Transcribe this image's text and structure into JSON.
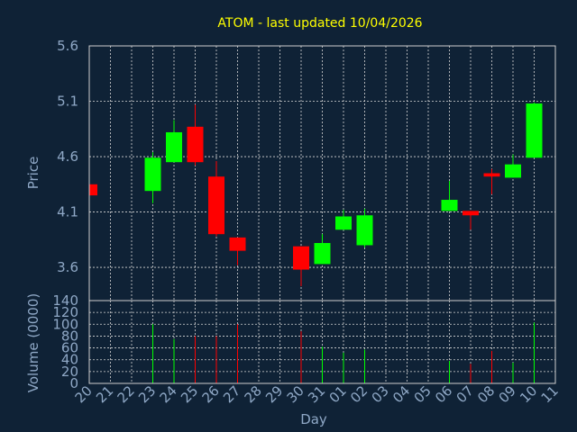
{
  "chart_data": [
    {
      "type": "candlestick",
      "title": "ATOM - last updated 10/04/2026",
      "ylabel": "Price",
      "ylim": [
        3.3,
        5.6
      ],
      "yticks": [
        "5.6",
        "5.1",
        "4.6",
        "4.1",
        "3.6"
      ],
      "grid": true,
      "up_color": "#00ff00",
      "down_color": "#ff0000",
      "candles": [
        {
          "day": "20",
          "open": 4.35,
          "high": 4.35,
          "low": 4.25,
          "close": 4.25
        },
        {
          "day": "23",
          "open": 4.29,
          "high": 4.64,
          "low": 4.18,
          "close": 4.59
        },
        {
          "day": "24",
          "open": 4.55,
          "high": 4.93,
          "low": 4.55,
          "close": 4.82
        },
        {
          "day": "25",
          "open": 4.87,
          "high": 5.07,
          "low": 4.52,
          "close": 4.55
        },
        {
          "day": "26",
          "open": 4.42,
          "high": 4.56,
          "low": 3.88,
          "close": 3.9
        },
        {
          "day": "27",
          "open": 3.87,
          "high": 3.87,
          "low": 3.62,
          "close": 3.75
        },
        {
          "day": "30",
          "open": 3.79,
          "high": 3.79,
          "low": 3.43,
          "close": 3.58
        },
        {
          "day": "31",
          "open": 3.63,
          "high": 3.9,
          "low": 3.63,
          "close": 3.82
        },
        {
          "day": "01",
          "open": 3.94,
          "high": 4.12,
          "low": 3.94,
          "close": 4.06
        },
        {
          "day": "02",
          "open": 3.8,
          "high": 4.13,
          "low": 3.78,
          "close": 4.07
        },
        {
          "day": "06",
          "open": 4.11,
          "high": 4.38,
          "low": 4.11,
          "close": 4.21
        },
        {
          "day": "07",
          "open": 4.11,
          "high": 4.11,
          "low": 3.94,
          "close": 4.07
        },
        {
          "day": "08",
          "open": 4.45,
          "high": 4.49,
          "low": 4.26,
          "close": 4.42
        },
        {
          "day": "09",
          "open": 4.41,
          "high": 4.62,
          "low": 4.41,
          "close": 4.53
        },
        {
          "day": "10",
          "open": 4.59,
          "high": 5.09,
          "low": 4.59,
          "close": 5.08
        }
      ]
    },
    {
      "type": "bar",
      "ylabel": "Volume (0000)",
      "ylim": [
        0,
        140
      ],
      "yticks": [
        "140",
        "120",
        "100",
        "80",
        "60",
        "40",
        "20",
        "0"
      ],
      "xlabel": "Day",
      "categories": [
        "20",
        "21",
        "22",
        "23",
        "24",
        "25",
        "26",
        "27",
        "28",
        "29",
        "30",
        "31",
        "01",
        "02",
        "03",
        "04",
        "05",
        "06",
        "07",
        "08",
        "09",
        "10",
        "11"
      ],
      "values": [
        0,
        0,
        0,
        100,
        75,
        80,
        80,
        100,
        0,
        0,
        88,
        62,
        52,
        57,
        0,
        0,
        0,
        38,
        33,
        55,
        35,
        103,
        0
      ],
      "direction": [
        "none",
        "none",
        "none",
        "up",
        "up",
        "down",
        "down",
        "down",
        "none",
        "none",
        "down",
        "up",
        "up",
        "up",
        "none",
        "none",
        "none",
        "up",
        "down",
        "down",
        "up",
        "up",
        "none"
      ]
    }
  ]
}
